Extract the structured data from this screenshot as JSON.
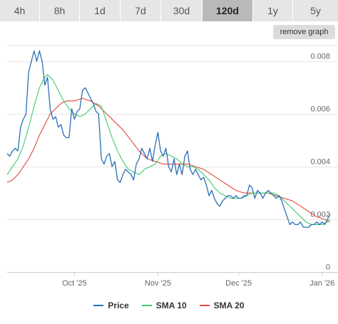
{
  "tabs": [
    {
      "label": "4h",
      "active": false
    },
    {
      "label": "8h",
      "active": false
    },
    {
      "label": "1d",
      "active": false
    },
    {
      "label": "7d",
      "active": false
    },
    {
      "label": "30d",
      "active": false
    },
    {
      "label": "120d",
      "active": true
    },
    {
      "label": "1y",
      "active": false
    },
    {
      "label": "5y",
      "active": false
    }
  ],
  "remove_graph_label": "remove graph",
  "colors": {
    "price": "#2a6fb5",
    "sma10": "#3ecb6b",
    "sma20": "#e2473c",
    "grid": "#e6e6e6",
    "tab_active": "#b9b9b9",
    "tab_inactive": "#e6e6e6"
  },
  "legend": [
    {
      "label": "Price",
      "color": "#2a6fb5"
    },
    {
      "label": "SMA 10",
      "color": "#3ecb6b"
    },
    {
      "label": "SMA 20",
      "color": "#e2473c"
    }
  ],
  "chart_data": {
    "type": "line",
    "x_start": "2025-09-06",
    "x_end": "2026-01-04",
    "xticks": [
      {
        "date": "2025-10-01",
        "label": "Oct '25"
      },
      {
        "date": "2025-11-01",
        "label": "Nov '25"
      },
      {
        "date": "2025-12-01",
        "label": "Dec '25"
      },
      {
        "date": "2026-01-01",
        "label": "Jan '26"
      }
    ],
    "ylim": [
      0,
      0.0086
    ],
    "yticks": [
      {
        "value": 0,
        "label": "0"
      },
      {
        "value": 0.002,
        "label": "0.002"
      },
      {
        "value": 0.004,
        "label": "0.004"
      },
      {
        "value": 0.006,
        "label": "0.006"
      },
      {
        "value": 0.008,
        "label": "0.008"
      }
    ],
    "grid": true,
    "legend_position": "bottom",
    "series": [
      {
        "name": "Price",
        "points": [
          [
            "2025-09-06",
            0.0045
          ],
          [
            "2025-09-07",
            0.0044
          ],
          [
            "2025-09-08",
            0.0046
          ],
          [
            "2025-09-09",
            0.0047
          ],
          [
            "2025-09-10",
            0.0046
          ],
          [
            "2025-09-11",
            0.0055
          ],
          [
            "2025-09-12",
            0.0058
          ],
          [
            "2025-09-13",
            0.006
          ],
          [
            "2025-09-14",
            0.0076
          ],
          [
            "2025-09-15",
            0.008
          ],
          [
            "2025-09-16",
            0.0084
          ],
          [
            "2025-09-17",
            0.008
          ],
          [
            "2025-09-18",
            0.0084
          ],
          [
            "2025-09-19",
            0.008
          ],
          [
            "2025-09-20",
            0.0071
          ],
          [
            "2025-09-21",
            0.0074
          ],
          [
            "2025-09-22",
            0.0062
          ],
          [
            "2025-09-23",
            0.0058
          ],
          [
            "2025-09-24",
            0.0059
          ],
          [
            "2025-09-25",
            0.0055
          ],
          [
            "2025-09-26",
            0.0056
          ],
          [
            "2025-09-27",
            0.0052
          ],
          [
            "2025-09-28",
            0.0051
          ],
          [
            "2025-09-29",
            0.0051
          ],
          [
            "2025-09-30",
            0.0062
          ],
          [
            "2025-10-01",
            0.0058
          ],
          [
            "2025-10-02",
            0.0061
          ],
          [
            "2025-10-03",
            0.0062
          ],
          [
            "2025-10-04",
            0.0069
          ],
          [
            "2025-10-05",
            0.007
          ],
          [
            "2025-10-06",
            0.0068
          ],
          [
            "2025-10-07",
            0.0066
          ],
          [
            "2025-10-08",
            0.0064
          ],
          [
            "2025-10-09",
            0.0061
          ],
          [
            "2025-10-10",
            0.006
          ],
          [
            "2025-10-11",
            0.0043
          ],
          [
            "2025-10-12",
            0.0041
          ],
          [
            "2025-10-13",
            0.0044
          ],
          [
            "2025-10-14",
            0.0045
          ],
          [
            "2025-10-15",
            0.004
          ],
          [
            "2025-10-16",
            0.0042
          ],
          [
            "2025-10-17",
            0.0035
          ],
          [
            "2025-10-18",
            0.0034
          ],
          [
            "2025-10-19",
            0.0037
          ],
          [
            "2025-10-20",
            0.0039
          ],
          [
            "2025-10-21",
            0.0038
          ],
          [
            "2025-10-22",
            0.0037
          ],
          [
            "2025-10-23",
            0.0035
          ],
          [
            "2025-10-24",
            0.0041
          ],
          [
            "2025-10-25",
            0.0043
          ],
          [
            "2025-10-26",
            0.0047
          ],
          [
            "2025-10-27",
            0.0045
          ],
          [
            "2025-10-28",
            0.0043
          ],
          [
            "2025-10-29",
            0.0047
          ],
          [
            "2025-10-30",
            0.0042
          ],
          [
            "2025-10-31",
            0.0048
          ],
          [
            "2025-11-01",
            0.0053
          ],
          [
            "2025-11-02",
            0.0046
          ],
          [
            "2025-11-03",
            0.0044
          ],
          [
            "2025-11-04",
            0.0047
          ],
          [
            "2025-11-05",
            0.004
          ],
          [
            "2025-11-06",
            0.0038
          ],
          [
            "2025-11-07",
            0.0043
          ],
          [
            "2025-11-08",
            0.0037
          ],
          [
            "2025-11-09",
            0.0041
          ],
          [
            "2025-11-10",
            0.0037
          ],
          [
            "2025-11-11",
            0.0044
          ],
          [
            "2025-11-12",
            0.0046
          ],
          [
            "2025-11-13",
            0.0039
          ],
          [
            "2025-11-14",
            0.0037
          ],
          [
            "2025-11-15",
            0.0039
          ],
          [
            "2025-11-16",
            0.0037
          ],
          [
            "2025-11-17",
            0.0035
          ],
          [
            "2025-11-18",
            0.0036
          ],
          [
            "2025-11-19",
            0.0033
          ],
          [
            "2025-11-20",
            0.0029
          ],
          [
            "2025-11-21",
            0.0031
          ],
          [
            "2025-11-22",
            0.0028
          ],
          [
            "2025-11-23",
            0.0026
          ],
          [
            "2025-11-24",
            0.0025
          ],
          [
            "2025-11-25",
            0.0027
          ],
          [
            "2025-11-26",
            0.0028
          ],
          [
            "2025-11-27",
            0.0029
          ],
          [
            "2025-11-28",
            0.0029
          ],
          [
            "2025-11-29",
            0.0028
          ],
          [
            "2025-11-30",
            0.0029
          ],
          [
            "2025-12-01",
            0.0028
          ],
          [
            "2025-12-02",
            0.0028
          ],
          [
            "2025-12-03",
            0.0029
          ],
          [
            "2025-12-04",
            0.0029
          ],
          [
            "2025-12-05",
            0.0033
          ],
          [
            "2025-12-06",
            0.0032
          ],
          [
            "2025-12-07",
            0.0028
          ],
          [
            "2025-12-08",
            0.0031
          ],
          [
            "2025-12-09",
            0.003
          ],
          [
            "2025-12-10",
            0.0028
          ],
          [
            "2025-12-11",
            0.003
          ],
          [
            "2025-12-12",
            0.0031
          ],
          [
            "2025-12-13",
            0.003
          ],
          [
            "2025-12-14",
            0.0029
          ],
          [
            "2025-12-15",
            0.0028
          ],
          [
            "2025-12-16",
            0.0029
          ],
          [
            "2025-12-17",
            0.0027
          ],
          [
            "2025-12-18",
            0.0024
          ],
          [
            "2025-12-19",
            0.0021
          ],
          [
            "2025-12-20",
            0.0018
          ],
          [
            "2025-12-21",
            0.0019
          ],
          [
            "2025-12-22",
            0.0018
          ],
          [
            "2025-12-23",
            0.0018
          ],
          [
            "2025-12-24",
            0.0019
          ],
          [
            "2025-12-25",
            0.0017
          ],
          [
            "2025-12-26",
            0.0017
          ],
          [
            "2025-12-27",
            0.0017
          ],
          [
            "2025-12-28",
            0.0018
          ],
          [
            "2025-12-29",
            0.0018
          ],
          [
            "2025-12-30",
            0.0019
          ],
          [
            "2025-12-31",
            0.0018
          ],
          [
            "2026-01-01",
            0.0019
          ],
          [
            "2026-01-02",
            0.0018
          ],
          [
            "2026-01-03",
            0.002
          ],
          [
            "2026-01-04",
            0.0022
          ]
        ]
      },
      {
        "name": "SMA 10",
        "points": [
          [
            "2025-09-06",
            0.0037
          ],
          [
            "2025-09-08",
            0.004
          ],
          [
            "2025-09-10",
            0.0043
          ],
          [
            "2025-09-12",
            0.0048
          ],
          [
            "2025-09-14",
            0.0055
          ],
          [
            "2025-09-16",
            0.0063
          ],
          [
            "2025-09-18",
            0.007
          ],
          [
            "2025-09-20",
            0.0074
          ],
          [
            "2025-09-21",
            0.0075
          ],
          [
            "2025-09-23",
            0.0073
          ],
          [
            "2025-09-25",
            0.0069
          ],
          [
            "2025-09-27",
            0.0065
          ],
          [
            "2025-09-29",
            0.0062
          ],
          [
            "2025-10-01",
            0.006
          ],
          [
            "2025-10-03",
            0.0059
          ],
          [
            "2025-10-05",
            0.006
          ],
          [
            "2025-10-07",
            0.0062
          ],
          [
            "2025-10-09",
            0.0064
          ],
          [
            "2025-10-11",
            0.0063
          ],
          [
            "2025-10-13",
            0.0057
          ],
          [
            "2025-10-15",
            0.0051
          ],
          [
            "2025-10-17",
            0.0046
          ],
          [
            "2025-10-19",
            0.0042
          ],
          [
            "2025-10-21",
            0.0039
          ],
          [
            "2025-10-23",
            0.0038
          ],
          [
            "2025-10-25",
            0.0037
          ],
          [
            "2025-10-27",
            0.0039
          ],
          [
            "2025-10-29",
            0.004
          ],
          [
            "2025-10-31",
            0.0041
          ],
          [
            "2025-11-02",
            0.0044
          ],
          [
            "2025-11-04",
            0.0045
          ],
          [
            "2025-11-06",
            0.0044
          ],
          [
            "2025-11-08",
            0.0043
          ],
          [
            "2025-11-10",
            0.0041
          ],
          [
            "2025-11-12",
            0.004
          ],
          [
            "2025-11-14",
            0.004
          ],
          [
            "2025-11-16",
            0.0039
          ],
          [
            "2025-11-18",
            0.0037
          ],
          [
            "2025-11-20",
            0.0035
          ],
          [
            "2025-11-22",
            0.0032
          ],
          [
            "2025-11-24",
            0.003
          ],
          [
            "2025-11-26",
            0.0029
          ],
          [
            "2025-11-28",
            0.0028
          ],
          [
            "2025-11-30",
            0.0028
          ],
          [
            "2025-12-02",
            0.0028
          ],
          [
            "2025-12-04",
            0.0029
          ],
          [
            "2025-12-06",
            0.003
          ],
          [
            "2025-12-08",
            0.003
          ],
          [
            "2025-12-10",
            0.003
          ],
          [
            "2025-12-12",
            0.003
          ],
          [
            "2025-12-14",
            0.003
          ],
          [
            "2025-12-16",
            0.0029
          ],
          [
            "2025-12-18",
            0.0027
          ],
          [
            "2025-12-20",
            0.0025
          ],
          [
            "2025-12-22",
            0.0023
          ],
          [
            "2025-12-24",
            0.0021
          ],
          [
            "2025-12-26",
            0.0019
          ],
          [
            "2025-12-28",
            0.0018
          ],
          [
            "2025-12-30",
            0.0018
          ],
          [
            "2026-01-01",
            0.0018
          ],
          [
            "2026-01-03",
            0.0019
          ],
          [
            "2026-01-04",
            0.002
          ]
        ]
      },
      {
        "name": "SMA 20",
        "points": [
          [
            "2025-09-06",
            0.0034
          ],
          [
            "2025-09-08",
            0.0035
          ],
          [
            "2025-09-10",
            0.0037
          ],
          [
            "2025-09-12",
            0.004
          ],
          [
            "2025-09-14",
            0.0043
          ],
          [
            "2025-09-16",
            0.0047
          ],
          [
            "2025-09-18",
            0.0052
          ],
          [
            "2025-09-20",
            0.0056
          ],
          [
            "2025-09-22",
            0.006
          ],
          [
            "2025-09-24",
            0.0062
          ],
          [
            "2025-09-26",
            0.0064
          ],
          [
            "2025-09-28",
            0.0065
          ],
          [
            "2025-10-01",
            0.0065
          ],
          [
            "2025-10-04",
            0.0066
          ],
          [
            "2025-10-07",
            0.0065
          ],
          [
            "2025-10-10",
            0.0063
          ],
          [
            "2025-10-13",
            0.006
          ],
          [
            "2025-10-16",
            0.0057
          ],
          [
            "2025-10-19",
            0.0054
          ],
          [
            "2025-10-22",
            0.005
          ],
          [
            "2025-10-25",
            0.0046
          ],
          [
            "2025-10-28",
            0.0043
          ],
          [
            "2025-10-31",
            0.0042
          ],
          [
            "2025-11-03",
            0.0041
          ],
          [
            "2025-11-06",
            0.0041
          ],
          [
            "2025-11-09",
            0.0041
          ],
          [
            "2025-11-12",
            0.0041
          ],
          [
            "2025-11-15",
            0.004
          ],
          [
            "2025-11-18",
            0.0039
          ],
          [
            "2025-11-21",
            0.0037
          ],
          [
            "2025-11-24",
            0.0035
          ],
          [
            "2025-11-27",
            0.0033
          ],
          [
            "2025-11-30",
            0.0031
          ],
          [
            "2025-12-03",
            0.003
          ],
          [
            "2025-12-06",
            0.003
          ],
          [
            "2025-12-09",
            0.003
          ],
          [
            "2025-12-12",
            0.003
          ],
          [
            "2025-12-15",
            0.0029
          ],
          [
            "2025-12-18",
            0.0028
          ],
          [
            "2025-12-21",
            0.0027
          ],
          [
            "2025-12-24",
            0.0025
          ],
          [
            "2025-12-27",
            0.0023
          ],
          [
            "2025-12-30",
            0.0021
          ],
          [
            "2026-01-02",
            0.002
          ],
          [
            "2026-01-04",
            0.0019
          ]
        ]
      }
    ]
  }
}
